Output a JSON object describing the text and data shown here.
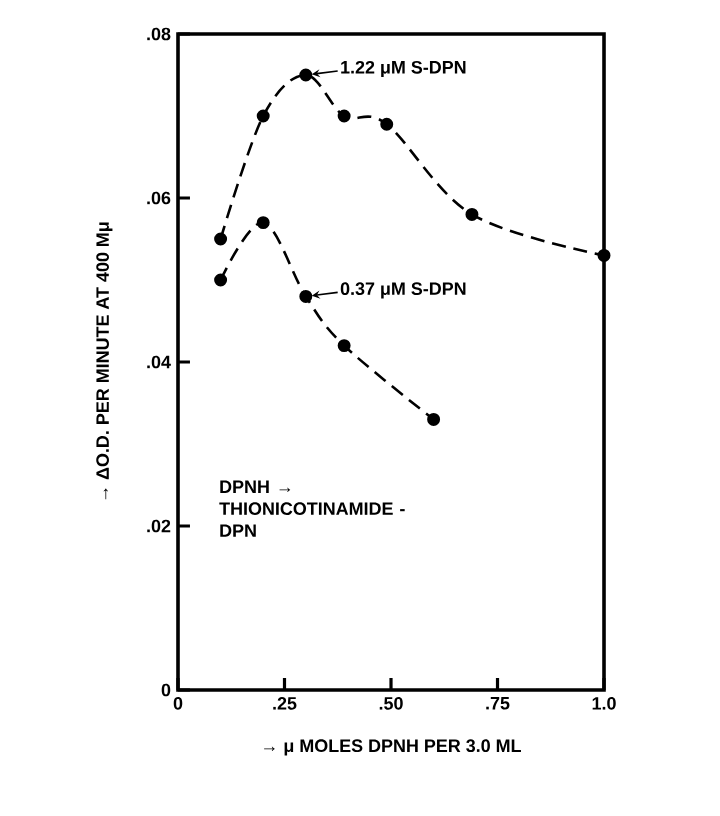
{
  "chart_data": {
    "type": "line",
    "xlabel": "→ μ MOLES DPNH PER 3.0 ML",
    "ylabel": "→ ΔO.D. PER MINUTE AT 400 Mμ",
    "xlim": [
      0,
      1.0
    ],
    "ylim": [
      0,
      0.08
    ],
    "xticks": [
      0,
      {
        "value": 0.25,
        "label": ".25"
      },
      {
        "value": 0.5,
        "label": ".50"
      },
      {
        "value": 0.75,
        "label": ".75"
      },
      {
        "value": 1.0,
        "label": "1.0"
      }
    ],
    "yticks": [
      0,
      {
        "value": 0.02,
        "label": ".02"
      },
      {
        "value": 0.04,
        "label": ".04"
      },
      {
        "value": 0.06,
        "label": ".06"
      },
      {
        "value": 0.08,
        "label": ".08"
      }
    ],
    "series": [
      {
        "color": "#000000",
        "x": [
          0.1,
          0.2,
          0.3,
          0.39,
          0.49,
          0.69,
          1.0
        ],
        "values": [
          0.055,
          0.07,
          0.075,
          0.07,
          0.069,
          0.058,
          0.053
        ]
      },
      {
        "color": "#000000",
        "x": [
          0.1,
          0.2,
          0.3,
          0.39,
          0.6
        ],
        "values": [
          0.05,
          0.057,
          0.048,
          0.042,
          0.033
        ]
      }
    ],
    "annotations": [
      {
        "text": "1.22 μM S-DPN",
        "x": 0.3,
        "y": 0.075
      },
      {
        "text": "0.37 μM S-DPN",
        "x": 0.3,
        "y": 0.048
      },
      "DPNH → THIONICOTINAMIDE - DPN"
    ],
    "marker": "circle",
    "line_style": "dashed",
    "grid": false
  }
}
